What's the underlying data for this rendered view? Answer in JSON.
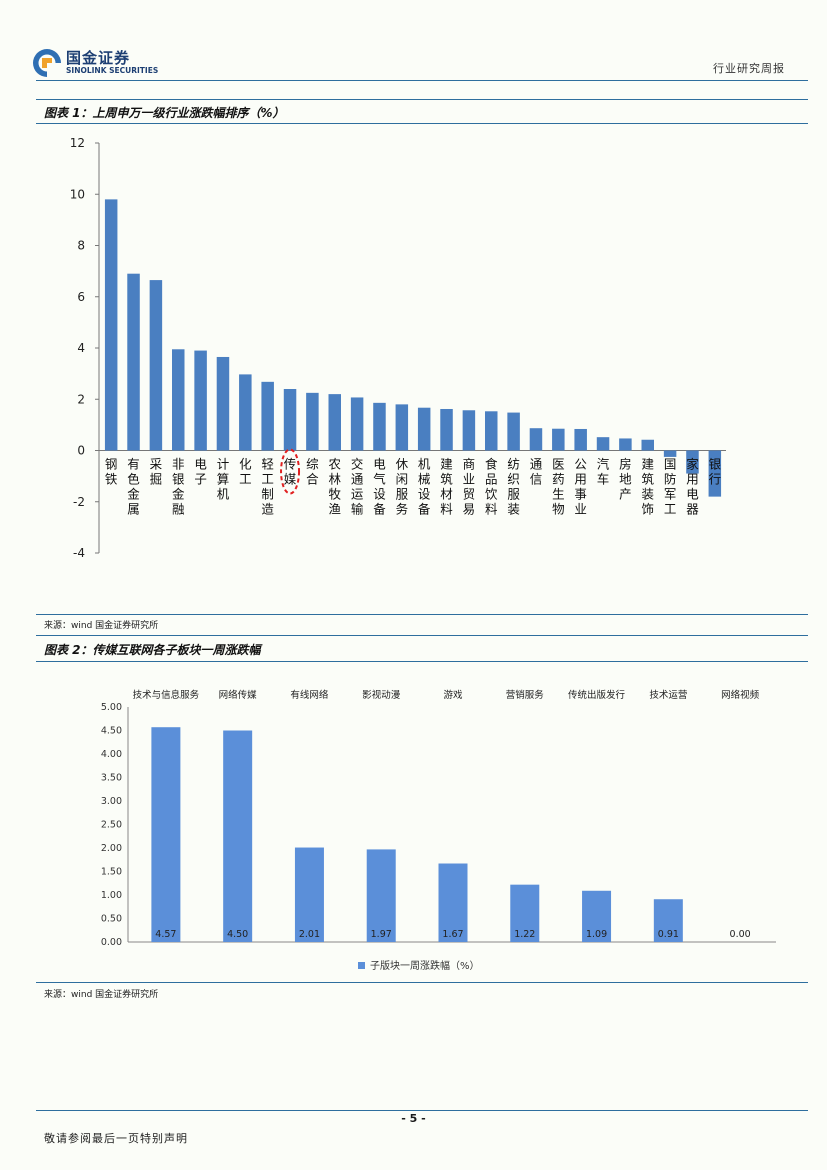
{
  "header": {
    "brand_cn": "国金证券",
    "brand_en": "SINOLINK SECURITIES",
    "report_type": "行业研究周报",
    "accent_color": "#2e6e9e"
  },
  "figure1": {
    "title": "图表 1：上周申万一级行业涨跌幅排序（%）",
    "source": "来源：wind 国金证券研究所"
  },
  "figure2": {
    "title": "图表 2：传媒互联网各子板块一周涨跌幅",
    "source": "来源：wind 国金证券研究所"
  },
  "chart_data": [
    {
      "type": "bar",
      "categories": [
        "钢铁",
        "有色金属",
        "采掘",
        "非银金融",
        "电子",
        "计算机",
        "化工",
        "轻工制造",
        "传媒",
        "综合",
        "农林牧渔",
        "交通运输",
        "电气设备",
        "休闲服务",
        "机械设备",
        "建筑材料",
        "商业贸易",
        "食品饮料",
        "纺织服装",
        "通信",
        "医药生物",
        "公用事业",
        "汽车",
        "房地产",
        "建筑装饰",
        "国防军工",
        "家用电器",
        "银行"
      ],
      "values": [
        9.8,
        6.9,
        6.65,
        3.95,
        3.9,
        3.65,
        2.97,
        2.68,
        2.4,
        2.25,
        2.2,
        2.07,
        1.86,
        1.8,
        1.67,
        1.62,
        1.57,
        1.53,
        1.48,
        0.87,
        0.85,
        0.84,
        0.52,
        0.47,
        0.42,
        -0.25,
        -0.9,
        -1.8
      ],
      "ylim": [
        -4,
        12
      ],
      "yticks": [
        -4,
        -2,
        0,
        2,
        4,
        6,
        8,
        10,
        12
      ],
      "highlight": "传媒",
      "color": "#4a7fc1"
    },
    {
      "type": "bar",
      "categories": [
        "技术与信息服务",
        "网络传媒",
        "有线网络",
        "影视动漫",
        "游戏",
        "营销服务",
        "传统出版发行",
        "技术运营",
        "网络视频"
      ],
      "values": [
        4.57,
        4.5,
        2.01,
        1.97,
        1.67,
        1.22,
        1.09,
        0.91,
        0.0
      ],
      "value_labels": [
        "4.57",
        "4.50",
        "2.01",
        "1.97",
        "1.67",
        "1.22",
        "1.09",
        "0.91",
        "0.00"
      ],
      "ylim": [
        0,
        5
      ],
      "yticks": [
        "0.00",
        "0.50",
        "1.00",
        "1.50",
        "2.00",
        "2.50",
        "3.00",
        "3.50",
        "4.00",
        "4.50",
        "5.00"
      ],
      "legend": "子版块一周涨跌幅（%）",
      "color": "#5b8fd9"
    }
  ],
  "footer": {
    "page_number": "- 5 -",
    "note": "敬请参阅最后一页特别声明"
  }
}
